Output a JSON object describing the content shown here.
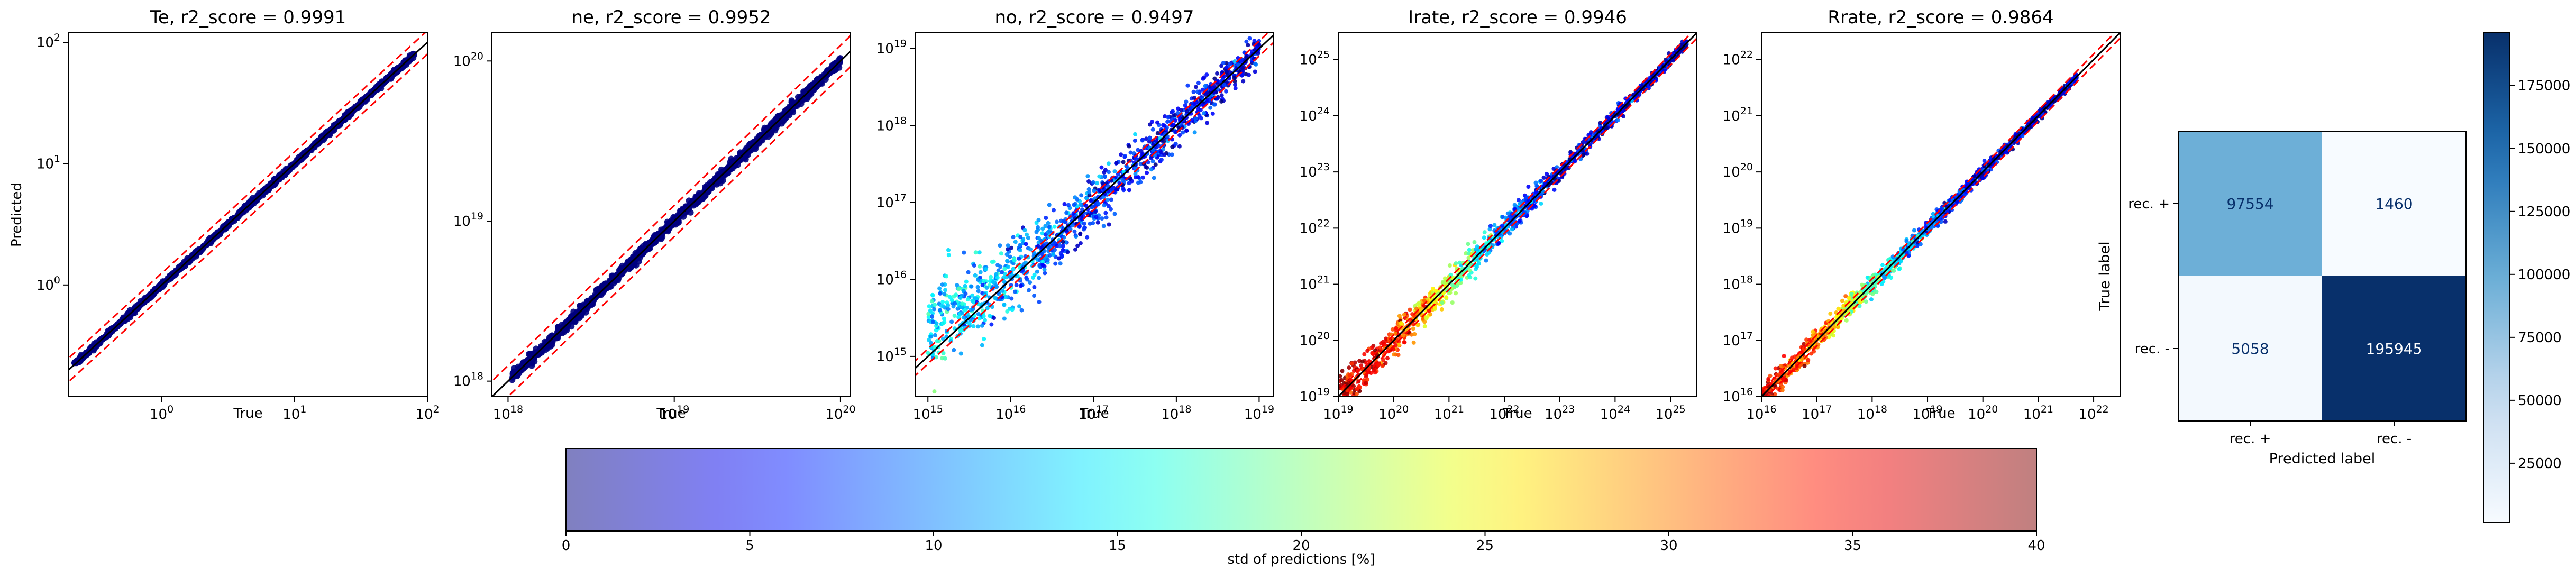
{
  "chart_data": [
    {
      "type": "scatter",
      "title": "Te, r2_score = 0.9991",
      "xlabel": "True",
      "ylabel": "Predicted",
      "xscale": "log",
      "yscale": "log",
      "xlim": [
        0.2,
        100
      ],
      "ylim": [
        0.12,
        120
      ],
      "xticks": [
        {
          "value": 1,
          "base": "10",
          "exp": "0"
        },
        {
          "value": 10,
          "base": "10",
          "exp": "1"
        },
        {
          "value": 100,
          "base": "10",
          "exp": "2"
        }
      ],
      "yticks": [
        {
          "value": 1,
          "base": "10",
          "exp": "0"
        },
        {
          "value": 10,
          "base": "10",
          "exp": "1"
        },
        {
          "value": 100,
          "base": "10",
          "exp": "2"
        }
      ],
      "data_range": [
        0.22,
        80
      ],
      "spread": 0.02,
      "std_profile": [
        [
          0.22,
          2
        ],
        [
          80,
          2
        ]
      ],
      "band_factor": 1.25,
      "point_color": "#00007f"
    },
    {
      "type": "scatter",
      "title": "ne, r2_score = 0.9952",
      "xlabel": "True",
      "xscale": "log",
      "yscale": "log",
      "xlim": [
        8e+17,
        1.15e+20
      ],
      "ylim": [
        8e+17,
        1.5e+20
      ],
      "xticks": [
        {
          "value": 1e+18,
          "base": "10",
          "exp": "18"
        },
        {
          "value": 1e+19,
          "base": "10",
          "exp": "19"
        },
        {
          "value": 1e+20,
          "base": "10",
          "exp": "20"
        }
      ],
      "yticks": [
        {
          "value": 1e+18,
          "base": "10",
          "exp": "18"
        },
        {
          "value": 1e+19,
          "base": "10",
          "exp": "19"
        },
        {
          "value": 1e+20,
          "base": "10",
          "exp": "20"
        }
      ],
      "data_range": [
        1.05e+18,
        1e+20
      ],
      "spread": 0.03,
      "std_profile": [
        [
          1e+18,
          2
        ],
        [
          1e+20,
          2
        ]
      ],
      "band_factor": 1.25,
      "point_color": "#00007f"
    },
    {
      "type": "scatter",
      "title": "no, r2_score = 0.9497",
      "xlabel": "True",
      "xscale": "log",
      "yscale": "log",
      "xlim": [
        700000000000000.0,
        1.5e+19
      ],
      "ylim": [
        300000000000000.0,
        1.6e+19
      ],
      "xticks": [
        {
          "value": 1000000000000000.0,
          "base": "10",
          "exp": "15"
        },
        {
          "value": 1e+16,
          "base": "10",
          "exp": "16"
        },
        {
          "value": 1e+17,
          "base": "10",
          "exp": "17"
        },
        {
          "value": 1e+18,
          "base": "10",
          "exp": "18"
        },
        {
          "value": 1e+19,
          "base": "10",
          "exp": "19"
        }
      ],
      "yticks": [
        {
          "value": 1000000000000000.0,
          "base": "10",
          "exp": "15"
        },
        {
          "value": 1e+16,
          "base": "10",
          "exp": "16"
        },
        {
          "value": 1e+17,
          "base": "10",
          "exp": "17"
        },
        {
          "value": 1e+18,
          "base": "10",
          "exp": "18"
        },
        {
          "value": 1e+19,
          "base": "10",
          "exp": "19"
        }
      ],
      "data_range": [
        1000000000000000.0,
        1e+19
      ],
      "spread": 0.45,
      "std_profile": [
        [
          1000000000000000.0,
          14
        ],
        [
          1e+16,
          11
        ],
        [
          1e+17,
          7
        ],
        [
          1e+18,
          5
        ],
        [
          1e+19,
          4
        ]
      ],
      "band_factor": 1.25
    },
    {
      "type": "scatter",
      "title": "Irate, r2_score = 0.9946",
      "xlabel": "True",
      "xscale": "log",
      "yscale": "log",
      "xlim": [
        1e+19,
        3e+25
      ],
      "ylim": [
        1e+19,
        3e+25
      ],
      "xticks": [
        {
          "value": 1e+19,
          "base": "10",
          "exp": "19"
        },
        {
          "value": 1e+20,
          "base": "10",
          "exp": "20"
        },
        {
          "value": 1e+21,
          "base": "10",
          "exp": "21"
        },
        {
          "value": 1e+22,
          "base": "10",
          "exp": "22"
        },
        {
          "value": 1e+23,
          "base": "10",
          "exp": "23"
        },
        {
          "value": 1e+24,
          "base": "10",
          "exp": "24"
        },
        {
          "value": 1e+25,
          "base": "10",
          "exp": "25"
        }
      ],
      "yticks": [
        {
          "value": 1e+19,
          "base": "10",
          "exp": "19"
        },
        {
          "value": 1e+20,
          "base": "10",
          "exp": "20"
        },
        {
          "value": 1e+21,
          "base": "10",
          "exp": "21"
        },
        {
          "value": 1e+22,
          "base": "10",
          "exp": "22"
        },
        {
          "value": 1e+23,
          "base": "10",
          "exp": "23"
        },
        {
          "value": 1e+24,
          "base": "10",
          "exp": "24"
        },
        {
          "value": 1e+25,
          "base": "10",
          "exp": "25"
        }
      ],
      "data_range": [
        1e+19,
        2e+25
      ],
      "spread": 0.3,
      "std_profile": [
        [
          1e+19,
          38
        ],
        [
          1e+20,
          34
        ],
        [
          1e+21,
          22
        ],
        [
          1e+22,
          10
        ],
        [
          1e+23,
          4
        ],
        [
          2e+25,
          2
        ]
      ],
      "band_factor": 1.25
    },
    {
      "type": "scatter",
      "title": "Rrate, r2_score = 0.9864",
      "xlabel": "True",
      "xscale": "log",
      "yscale": "log",
      "xlim": [
        1e+16,
        3e+22
      ],
      "ylim": [
        1e+16,
        3e+22
      ],
      "xticks": [
        {
          "value": 1e+16,
          "base": "10",
          "exp": "16"
        },
        {
          "value": 1e+17,
          "base": "10",
          "exp": "17"
        },
        {
          "value": 1e+18,
          "base": "10",
          "exp": "18"
        },
        {
          "value": 1e+19,
          "base": "10",
          "exp": "19"
        },
        {
          "value": 1e+20,
          "base": "10",
          "exp": "20"
        },
        {
          "value": 1e+21,
          "base": "10",
          "exp": "21"
        },
        {
          "value": 1e+22,
          "base": "10",
          "exp": "22"
        }
      ],
      "yticks": [
        {
          "value": 1e+16,
          "base": "10",
          "exp": "16"
        },
        {
          "value": 1e+17,
          "base": "10",
          "exp": "17"
        },
        {
          "value": 1e+18,
          "base": "10",
          "exp": "18"
        },
        {
          "value": 1e+19,
          "base": "10",
          "exp": "19"
        },
        {
          "value": 1e+20,
          "base": "10",
          "exp": "20"
        },
        {
          "value": 1e+21,
          "base": "10",
          "exp": "21"
        },
        {
          "value": 1e+22,
          "base": "10",
          "exp": "22"
        }
      ],
      "data_range": [
        1e+16,
        5e+21
      ],
      "spread": 0.22,
      "std_profile": [
        [
          1e+16,
          36
        ],
        [
          1e+17,
          30
        ],
        [
          1e+18,
          18
        ],
        [
          1e+19,
          9
        ],
        [
          1e+20,
          4
        ],
        [
          5e+21,
          2
        ]
      ],
      "band_factor": 1.25
    },
    {
      "type": "heatmap",
      "xlabel": "Predicted label",
      "ylabel": "True label",
      "x_categories": [
        "rec. +",
        "rec. -"
      ],
      "y_categories": [
        "rec. +",
        "rec. -"
      ],
      "values": [
        [
          97554,
          1460
        ],
        [
          5058,
          195945
        ]
      ],
      "value_labels": [
        [
          "97554",
          "1460"
        ],
        [
          "5058",
          "195945"
        ]
      ],
      "colorscale": "Blues",
      "colorbar": {
        "range": [
          1460,
          195945
        ],
        "ticks": [
          25000,
          50000,
          75000,
          100000,
          125000,
          150000,
          175000
        ],
        "tick_labels": [
          "25000",
          "50000",
          "75000",
          "100000",
          "125000",
          "150000",
          "175000"
        ]
      }
    }
  ],
  "colorbar": {
    "label": "std of predictions [%]",
    "range": [
      0,
      40
    ],
    "ticks": [
      0,
      5,
      10,
      15,
      20,
      25,
      30,
      35,
      40
    ],
    "tick_labels": [
      "0",
      "5",
      "10",
      "15",
      "20",
      "25",
      "30",
      "35",
      "40"
    ],
    "colormap": "jet",
    "alpha": 0.5
  },
  "colors": {
    "identity_line": "#000000",
    "band_lines": "#ff0000"
  }
}
